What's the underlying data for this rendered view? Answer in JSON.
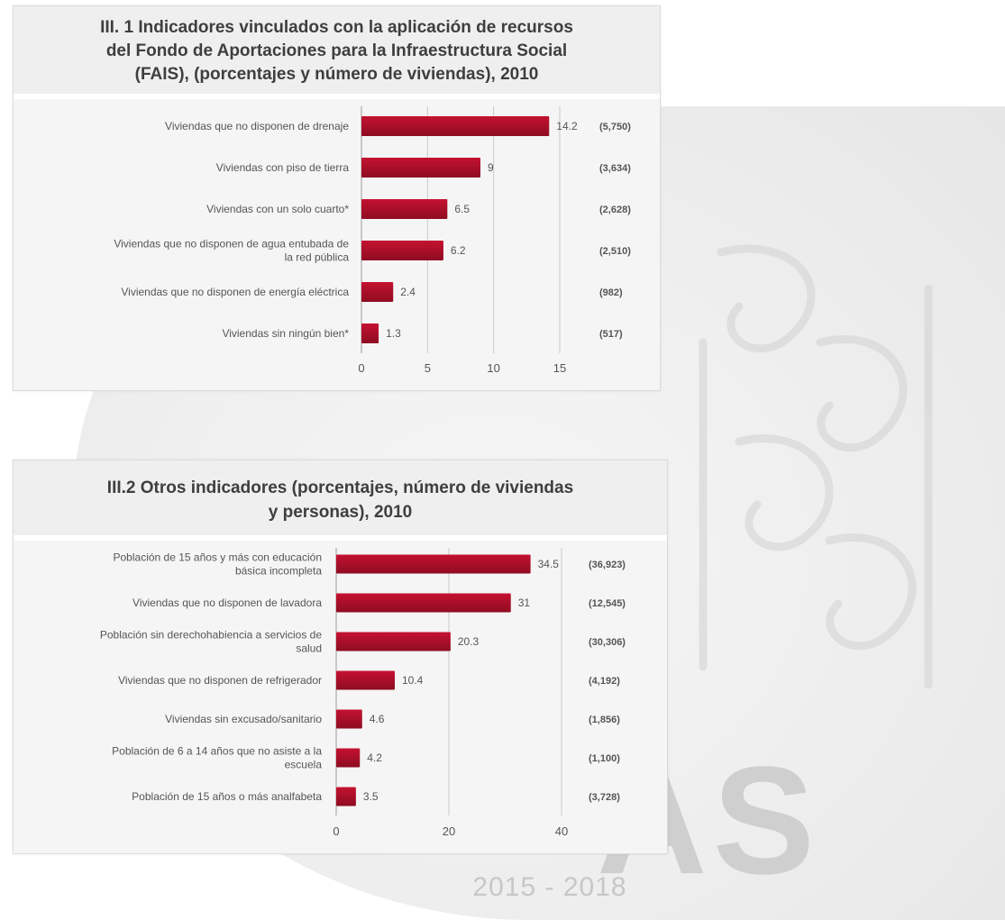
{
  "watermark": {
    "word": "AS",
    "years": "2015 - 2018"
  },
  "colors": {
    "bar": "#c41230",
    "bar_dark": "#8e0c22",
    "grid": "#c9c9c9",
    "text": "#555555",
    "header_bg": "#efefef"
  },
  "chart_data": [
    {
      "type": "bar",
      "orientation": "horizontal",
      "title_lines": [
        "III. 1 Indicadores vinculados con la aplicación de recursos",
        "del Fondo de Aportaciones para la Infraestructura Social",
        "(FAIS), (porcentajes y número de viviendas), 2010"
      ],
      "categories": [
        [
          "Viviendas que no disponen de drenaje"
        ],
        [
          "Viviendas con piso de tierra"
        ],
        [
          "Viviendas con un solo cuarto*"
        ],
        [
          "Viviendas que no disponen de agua entubada de",
          "la red pública"
        ],
        [
          "Viviendas que no disponen de energía eléctrica"
        ],
        [
          "Viviendas sin ningún bien*"
        ]
      ],
      "values": [
        14.2,
        9,
        6.5,
        6.2,
        2.4,
        1.3
      ],
      "value_labels": [
        "14.2",
        "9",
        "6.5",
        "6.2",
        "2.4",
        "1.3"
      ],
      "counts": [
        "(5,750)",
        "(3,634)",
        "(2,628)",
        "(2,510)",
        "(982)",
        "(517)"
      ],
      "xlim": [
        0,
        15
      ],
      "xticks": [
        0,
        5,
        10,
        15
      ],
      "grid": true
    },
    {
      "type": "bar",
      "orientation": "horizontal",
      "title_lines": [
        "III.2  Otros indicadores (porcentajes, número de viviendas",
        "y personas), 2010"
      ],
      "categories": [
        [
          "Población de 15 años y más con educación",
          "básica incompleta"
        ],
        [
          "Viviendas que no disponen de lavadora"
        ],
        [
          "Población sin derechohabiencia a servicios de",
          "salud"
        ],
        [
          "Viviendas que no disponen de refrigerador"
        ],
        [
          "Viviendas sin excusado/sanitario"
        ],
        [
          "Población de 6 a 14 años que no asiste a la",
          "escuela"
        ],
        [
          "Población de 15 años o más analfabeta"
        ]
      ],
      "values": [
        34.5,
        31,
        20.3,
        10.4,
        4.6,
        4.2,
        3.5
      ],
      "value_labels": [
        "34.5",
        "31",
        "20.3",
        "10.4",
        "4.6",
        "4.2",
        "3.5"
      ],
      "counts": [
        "(36,923)",
        "(12,545)",
        "(30,306)",
        "(4,192)",
        "(1,856)",
        "(1,100)",
        "(3,728)"
      ],
      "xlim": [
        0,
        40
      ],
      "xticks": [
        0,
        20,
        40
      ],
      "grid": true
    }
  ]
}
